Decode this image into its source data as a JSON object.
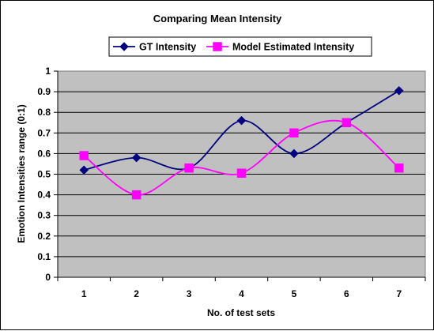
{
  "chart_data": {
    "type": "line",
    "title": "Comparing Mean Intensity",
    "xlabel": "No. of test sets",
    "ylabel": "Emotion Intensities range (0:1)",
    "categories": [
      "1",
      "2",
      "3",
      "4",
      "5",
      "6",
      "7"
    ],
    "ylim": [
      0,
      1
    ],
    "yticks": [
      "0",
      "0.1",
      "0.2",
      "0.3",
      "0.4",
      "0.5",
      "0.6",
      "0.7",
      "0.8",
      "0.9",
      "1"
    ],
    "grid": true,
    "legend": "top",
    "smooth": true,
    "plot_background": "#c0c0c0",
    "series": [
      {
        "name": "GT Intensity",
        "values": [
          0.52,
          0.58,
          0.53,
          0.76,
          0.6,
          0.75,
          0.905
        ],
        "color": "#000080",
        "marker": "diamond"
      },
      {
        "name": "Model Estimated Intensity",
        "values": [
          0.59,
          0.4,
          0.53,
          0.505,
          0.7,
          0.75,
          0.53
        ],
        "color": "#ff00ff",
        "marker": "square"
      }
    ]
  }
}
